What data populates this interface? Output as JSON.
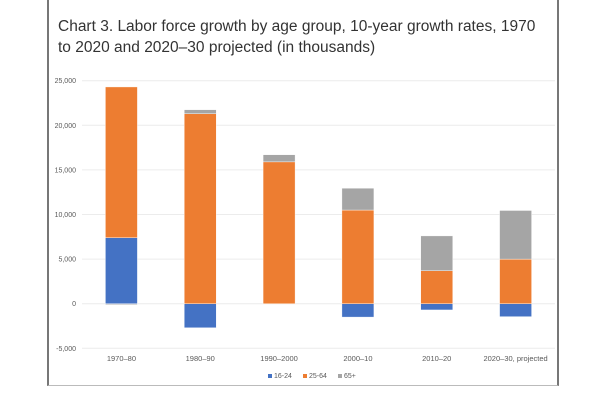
{
  "chart_data": {
    "type": "bar",
    "stacked": true,
    "title": "Chart 3. Labor force growth by age group, 10-year growth rates, 1970 to 2020 and 2020–30 projected (in thousands)",
    "xlabel": "",
    "ylabel": "",
    "ylim": [
      -5000,
      25000
    ],
    "yticks": [
      -5000,
      0,
      5000,
      10000,
      15000,
      20000,
      25000
    ],
    "ytick_labels": [
      "-5,000",
      "0",
      "5,000",
      "10,000",
      "15,000",
      "20,000",
      "25,000"
    ],
    "grid": true,
    "legend_position": "bottom",
    "categories": [
      "1970–80",
      "1980–90",
      "1990–2000",
      "2000–10",
      "2010–20",
      "2020–30, projected"
    ],
    "series": [
      {
        "name": "16-24",
        "color": "#4472c4",
        "values": [
          7400,
          -2700,
          0,
          -1500,
          -700,
          -1450
        ]
      },
      {
        "name": "25-64",
        "color": "#ed7d31",
        "values": [
          16900,
          21300,
          15900,
          10500,
          3700,
          5000
        ]
      },
      {
        "name": "65+",
        "color": "#a5a5a5",
        "values": [
          -100,
          450,
          800,
          2450,
          3900,
          5450
        ]
      }
    ]
  }
}
